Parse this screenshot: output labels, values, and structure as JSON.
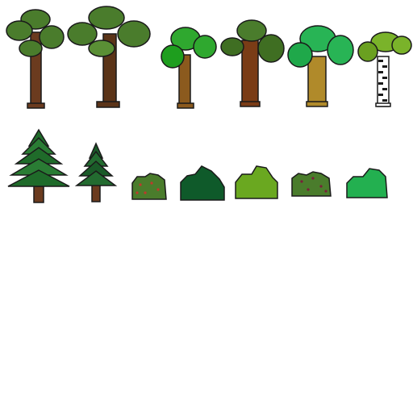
{
  "sheet": {
    "background": "#ffffff",
    "outline": "#1a1a1a"
  },
  "sprites": [
    {
      "name": "oak-tree-1-sprite",
      "kind": "deciduous-tree",
      "trunk": "#6b3b1f",
      "foliage": "#4a7c2c",
      "foliage_light": "#5a8f35"
    },
    {
      "name": "oak-tree-2-sprite",
      "kind": "deciduous-tree-large",
      "trunk": "#5b3418",
      "foliage": "#4a7c2c",
      "foliage_light": "#5a8f35"
    },
    {
      "name": "green-tree-sprite",
      "kind": "deciduous-tree-bright",
      "trunk": "#8b5a1e",
      "foliage": "#2fa82f",
      "foliage_light": "#1e9e1e"
    },
    {
      "name": "dark-oak-tree-sprite",
      "kind": "deciduous-tree-dark",
      "trunk": "#7a3c16",
      "foliage": "#4a7c2c",
      "foliage_light": "#3f6e22"
    },
    {
      "name": "jungle-tree-sprite",
      "kind": "deciduous-tree-mint",
      "trunk": "#b08a2a",
      "foliage": "#28b455",
      "foliage_light": "#1fa84a"
    },
    {
      "name": "birch-tree-sprite",
      "kind": "birch-tree",
      "trunk": "#ffffff",
      "foliage": "#7ab32a",
      "foliage_light": "#6aa020"
    },
    {
      "name": "pine-tree-large-sprite",
      "kind": "pine-tree",
      "trunk": "#6b3b1f",
      "foliage": "#1f6b2a",
      "foliage_light": "#2a7c34"
    },
    {
      "name": "pine-tree-small-sprite",
      "kind": "pine-tree-small",
      "trunk": "#6b3b1f",
      "foliage": "#1a5a28",
      "foliage_light": "#236b30"
    },
    {
      "name": "berry-bush-red-sprite",
      "kind": "bush-berries",
      "trunk": "",
      "foliage": "#4a7c2c",
      "foliage_light": "#5a8f35",
      "berries": "#c0392b"
    },
    {
      "name": "dark-bush-sprite",
      "kind": "bush-dark",
      "trunk": "",
      "foliage": "#0f5a2a",
      "foliage_light": "#176b34"
    },
    {
      "name": "lime-bush-sprite",
      "kind": "bush-lime",
      "trunk": "",
      "foliage": "#6aa820",
      "foliage_light": "#7ab82a"
    },
    {
      "name": "berry-bush-purple-sprite",
      "kind": "bush-berries-dark",
      "trunk": "",
      "foliage": "#4a7c2c",
      "foliage_light": "#5a8f35",
      "berries": "#7a1f3a"
    },
    {
      "name": "mint-bush-sprite",
      "kind": "bush-mint",
      "trunk": "",
      "foliage": "#23b050",
      "foliage_light": "#1fa048"
    }
  ]
}
